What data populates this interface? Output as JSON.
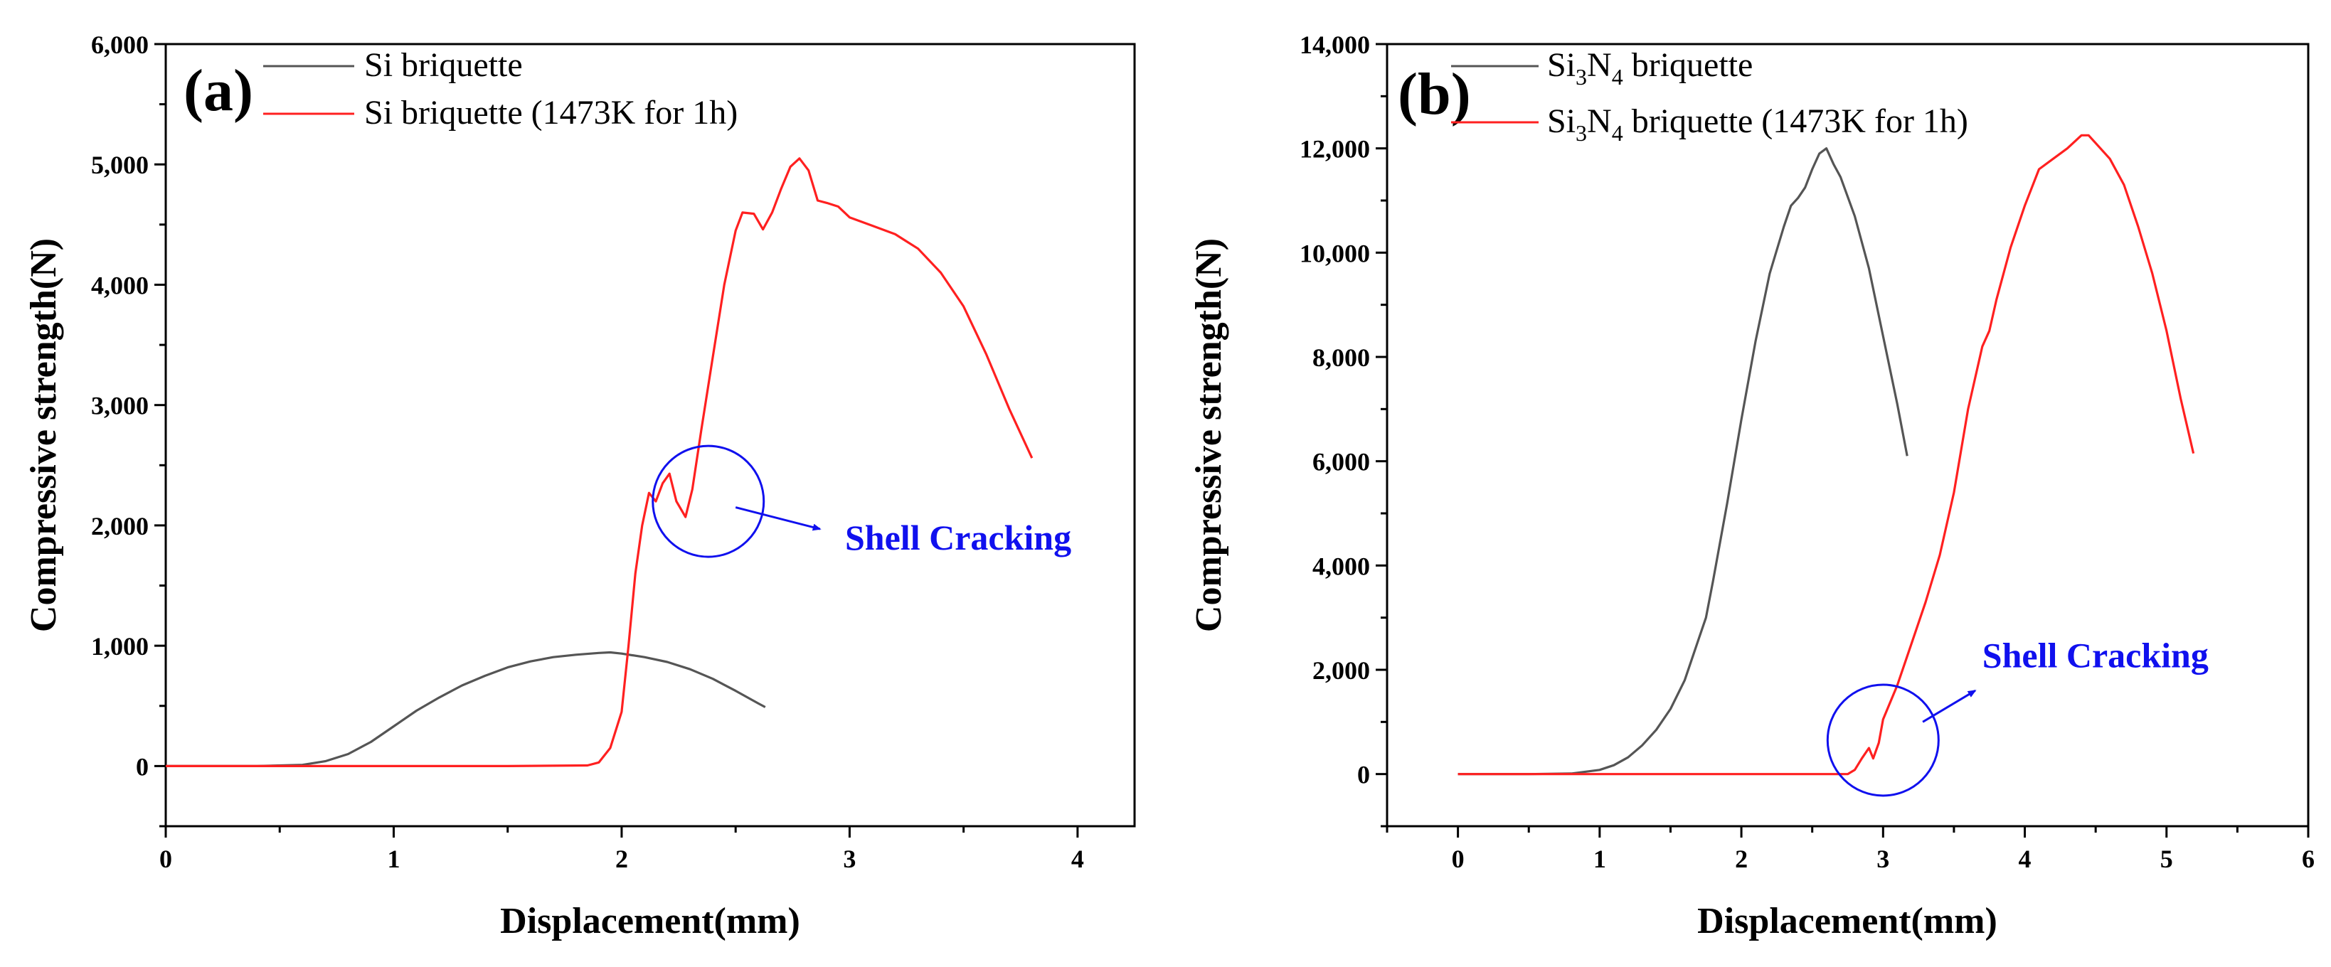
{
  "colors": {
    "series_gray": "#555555",
    "series_red": "#ff2020",
    "annotation_blue": "#1010ee"
  },
  "chart_data": [
    {
      "type": "line",
      "panel_label": "(a)",
      "xlabel": "Displacement(mm)",
      "ylabel": "Compressive strength(N)",
      "xlim": [
        0,
        4.25
      ],
      "ylim": [
        -500,
        6000
      ],
      "xticks": [
        0,
        1,
        2,
        3,
        4
      ],
      "yticks": [
        0,
        1000,
        2000,
        3000,
        4000,
        5000,
        6000
      ],
      "xtick_labels": [
        "0",
        "1",
        "2",
        "3",
        "4"
      ],
      "ytick_labels": [
        "0",
        "1,000",
        "2,000",
        "3,000",
        "4,000",
        "5,000",
        "6,000"
      ],
      "legend_position": "top-left",
      "series": [
        {
          "name": "Si briquette",
          "color": "#555555",
          "points": [
            [
              0,
              0
            ],
            [
              0.4,
              0
            ],
            [
              0.6,
              10
            ],
            [
              0.7,
              40
            ],
            [
              0.8,
              100
            ],
            [
              0.9,
              200
            ],
            [
              1.0,
              330
            ],
            [
              1.1,
              460
            ],
            [
              1.2,
              570
            ],
            [
              1.3,
              670
            ],
            [
              1.4,
              750
            ],
            [
              1.5,
              820
            ],
            [
              1.6,
              870
            ],
            [
              1.7,
              905
            ],
            [
              1.8,
              925
            ],
            [
              1.9,
              940
            ],
            [
              1.95,
              945
            ],
            [
              2.0,
              935
            ],
            [
              2.1,
              905
            ],
            [
              2.2,
              865
            ],
            [
              2.3,
              805
            ],
            [
              2.4,
              725
            ],
            [
              2.5,
              625
            ],
            [
              2.6,
              520
            ],
            [
              2.63,
              490
            ]
          ]
        },
        {
          "name": "Si briquette (1473K for 1h)",
          "color": "#ff2020",
          "points": [
            [
              0,
              0
            ],
            [
              0.5,
              0
            ],
            [
              1.0,
              0
            ],
            [
              1.5,
              0
            ],
            [
              1.85,
              5
            ],
            [
              1.9,
              30
            ],
            [
              1.95,
              150
            ],
            [
              2.0,
              450
            ],
            [
              2.03,
              1000
            ],
            [
              2.06,
              1600
            ],
            [
              2.09,
              2000
            ],
            [
              2.12,
              2270
            ],
            [
              2.15,
              2200
            ],
            [
              2.18,
              2350
            ],
            [
              2.21,
              2430
            ],
            [
              2.24,
              2200
            ],
            [
              2.28,
              2070
            ],
            [
              2.31,
              2300
            ],
            [
              2.35,
              2800
            ],
            [
              2.4,
              3400
            ],
            [
              2.45,
              4000
            ],
            [
              2.5,
              4450
            ],
            [
              2.53,
              4600
            ],
            [
              2.58,
              4590
            ],
            [
              2.62,
              4460
            ],
            [
              2.66,
              4600
            ],
            [
              2.7,
              4800
            ],
            [
              2.74,
              4980
            ],
            [
              2.78,
              5050
            ],
            [
              2.82,
              4950
            ],
            [
              2.86,
              4700
            ],
            [
              2.9,
              4680
            ],
            [
              2.95,
              4650
            ],
            [
              3.0,
              4560
            ],
            [
              3.1,
              4490
            ],
            [
              3.2,
              4420
            ],
            [
              3.3,
              4300
            ],
            [
              3.4,
              4100
            ],
            [
              3.5,
              3820
            ],
            [
              3.6,
              3420
            ],
            [
              3.7,
              2970
            ],
            [
              3.8,
              2560
            ]
          ]
        }
      ],
      "annotation": {
        "text": "Shell Cracking",
        "circle_center": [
          2.38,
          2200
        ],
        "arrow_from": [
          2.5,
          2150
        ],
        "arrow_to": [
          2.87,
          1970
        ],
        "text_position": [
          2.98,
          1800
        ]
      }
    },
    {
      "type": "line",
      "panel_label": "(b)",
      "xlabel": "Displacement(mm)",
      "ylabel": "Compressive strength(N)",
      "xlim": [
        -0.5,
        6
      ],
      "ylim": [
        -1000,
        14000
      ],
      "xticks": [
        0,
        1,
        2,
        3,
        4,
        5,
        6
      ],
      "yticks": [
        0,
        2000,
        4000,
        6000,
        8000,
        10000,
        12000,
        14000
      ],
      "xtick_labels": [
        "0",
        "1",
        "2",
        "3",
        "4",
        "5",
        "6"
      ],
      "ytick_labels": [
        "0",
        "2,000",
        "4,000",
        "6,000",
        "8,000",
        "10,000",
        "12,000",
        "14,000"
      ],
      "legend_position": "top-left",
      "series": [
        {
          "name_main": "Si",
          "name_sub1": "3",
          "name_mid": "N",
          "name_sub2": "4",
          "name_rest": " briquette",
          "color": "#555555",
          "points": [
            [
              0,
              0
            ],
            [
              0.5,
              0
            ],
            [
              0.8,
              10
            ],
            [
              1.0,
              80
            ],
            [
              1.1,
              170
            ],
            [
              1.2,
              320
            ],
            [
              1.3,
              550
            ],
            [
              1.4,
              850
            ],
            [
              1.5,
              1250
            ],
            [
              1.6,
              1800
            ],
            [
              1.7,
              2600
            ],
            [
              1.75,
              3000
            ],
            [
              1.8,
              3700
            ],
            [
              1.9,
              5200
            ],
            [
              2.0,
              6800
            ],
            [
              2.1,
              8300
            ],
            [
              2.2,
              9600
            ],
            [
              2.3,
              10500
            ],
            [
              2.35,
              10900
            ],
            [
              2.4,
              11050
            ],
            [
              2.45,
              11250
            ],
            [
              2.5,
              11600
            ],
            [
              2.55,
              11900
            ],
            [
              2.6,
              12000
            ],
            [
              2.65,
              11700
            ],
            [
              2.7,
              11450
            ],
            [
              2.8,
              10700
            ],
            [
              2.9,
              9700
            ],
            [
              3.0,
              8400
            ],
            [
              3.1,
              7100
            ],
            [
              3.17,
              6100
            ]
          ]
        },
        {
          "name_main": "Si",
          "name_sub1": "3",
          "name_mid": "N",
          "name_sub2": "4",
          "name_rest": " briquette (1473K for 1h)",
          "color": "#ff2020",
          "points": [
            [
              0,
              0
            ],
            [
              1.0,
              0
            ],
            [
              2.0,
              0
            ],
            [
              2.75,
              0
            ],
            [
              2.8,
              80
            ],
            [
              2.85,
              300
            ],
            [
              2.9,
              500
            ],
            [
              2.93,
              300
            ],
            [
              2.97,
              600
            ],
            [
              3.0,
              1050
            ],
            [
              3.1,
              1700
            ],
            [
              3.2,
              2500
            ],
            [
              3.3,
              3300
            ],
            [
              3.4,
              4200
            ],
            [
              3.5,
              5400
            ],
            [
              3.6,
              7000
            ],
            [
              3.7,
              8200
            ],
            [
              3.75,
              8500
            ],
            [
              3.8,
              9100
            ],
            [
              3.9,
              10100
            ],
            [
              4.0,
              10900
            ],
            [
              4.1,
              11600
            ],
            [
              4.2,
              11800
            ],
            [
              4.3,
              12000
            ],
            [
              4.4,
              12250
            ],
            [
              4.45,
              12250
            ],
            [
              4.5,
              12100
            ],
            [
              4.6,
              11800
            ],
            [
              4.7,
              11300
            ],
            [
              4.8,
              10500
            ],
            [
              4.9,
              9600
            ],
            [
              5.0,
              8500
            ],
            [
              5.1,
              7200
            ],
            [
              5.19,
              6150
            ]
          ]
        }
      ],
      "annotation": {
        "text": "Shell Cracking",
        "circle_center": [
          3.0,
          650
        ],
        "arrow_from": [
          3.28,
          1000
        ],
        "arrow_to": [
          3.65,
          1600
        ],
        "text_position": [
          3.7,
          2050
        ]
      }
    }
  ]
}
